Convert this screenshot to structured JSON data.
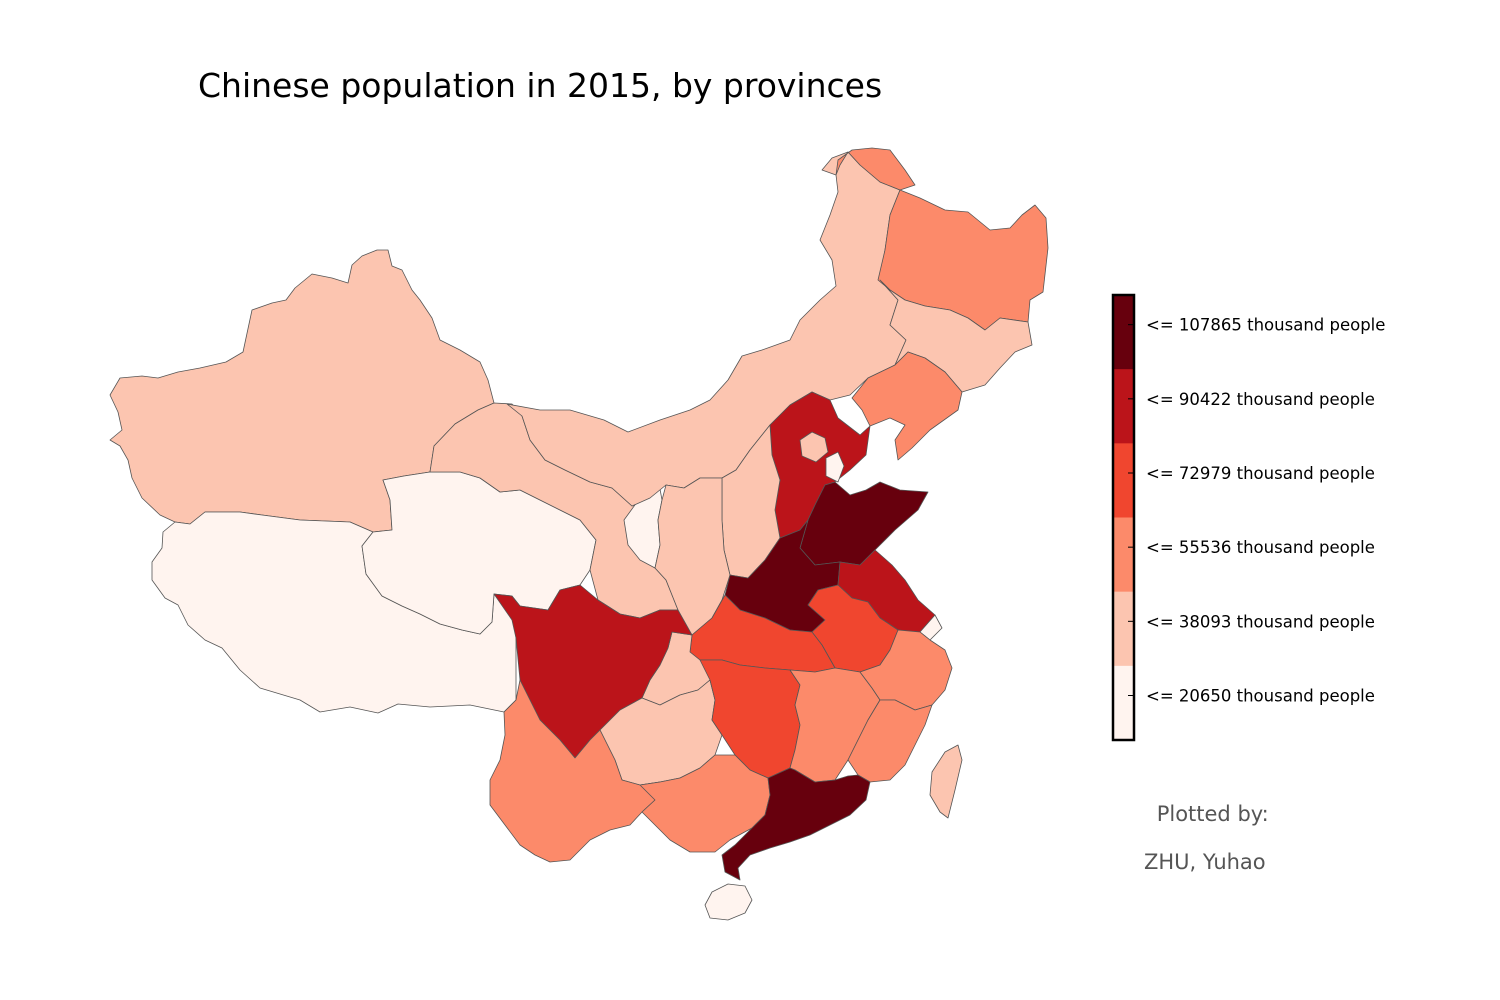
{
  "title": "Chinese population in 2015, by provinces",
  "credit": {
    "line1": "Plotted by:",
    "line2": "ZHU, Yuhao"
  },
  "legend": {
    "bins": [
      {
        "label": "<= 107865 thousand people",
        "color": "#67000d"
      },
      {
        "label": "<= 90422 thousand people",
        "color": "#bb141a"
      },
      {
        "label": "<= 72979 thousand people",
        "color": "#f0462f"
      },
      {
        "label": "<= 55536 thousand people",
        "color": "#fc8a6a"
      },
      {
        "label": "<= 38093 thousand people",
        "color": "#fcc5b0"
      },
      {
        "label": "<= 20650 thousand people",
        "color": "#fff4ef"
      }
    ]
  },
  "map": {
    "regions": [
      {
        "id": "xinjiang",
        "bin": 4
      },
      {
        "id": "tibet",
        "bin": 5
      },
      {
        "id": "qinghai",
        "bin": 5
      },
      {
        "id": "gansu",
        "bin": 4
      },
      {
        "id": "inner-mongolia",
        "bin": 4
      },
      {
        "id": "heilongjiang",
        "bin": 3
      },
      {
        "id": "heilongjiang-north",
        "bin": 3
      },
      {
        "id": "jilin",
        "bin": 4
      },
      {
        "id": "liaoning",
        "bin": 3
      },
      {
        "id": "hebei",
        "bin": 1
      },
      {
        "id": "beijing",
        "bin": 4
      },
      {
        "id": "tianjin",
        "bin": 5
      },
      {
        "id": "shanxi",
        "bin": 4
      },
      {
        "id": "shaanxi",
        "bin": 4
      },
      {
        "id": "ningxia",
        "bin": 5
      },
      {
        "id": "shandong",
        "bin": 0
      },
      {
        "id": "henan",
        "bin": 0
      },
      {
        "id": "jiangsu",
        "bin": 1
      },
      {
        "id": "shanghai",
        "bin": 5
      },
      {
        "id": "anhui",
        "bin": 2
      },
      {
        "id": "hubei",
        "bin": 2
      },
      {
        "id": "sichuan",
        "bin": 1
      },
      {
        "id": "chongqing",
        "bin": 4
      },
      {
        "id": "guizhou",
        "bin": 4
      },
      {
        "id": "yunnan",
        "bin": 3
      },
      {
        "id": "hunan",
        "bin": 2
      },
      {
        "id": "jiangxi",
        "bin": 3
      },
      {
        "id": "zhejiang",
        "bin": 3
      },
      {
        "id": "fujian",
        "bin": 3
      },
      {
        "id": "guangxi",
        "bin": 3
      },
      {
        "id": "guangdong",
        "bin": 0
      },
      {
        "id": "hainan",
        "bin": 5
      },
      {
        "id": "taiwan",
        "bin": 4
      }
    ]
  }
}
